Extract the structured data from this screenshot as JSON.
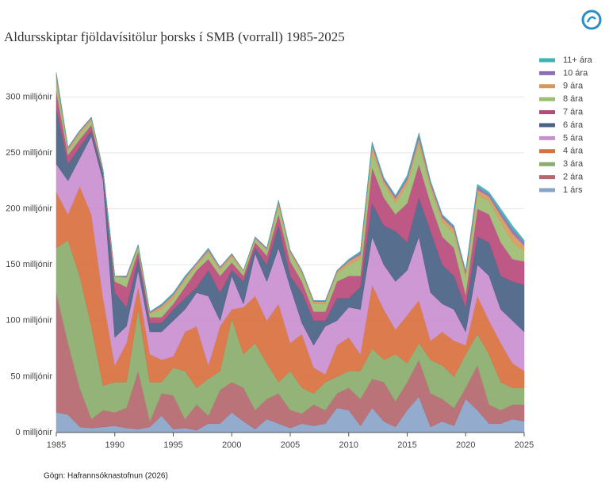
{
  "chart_data": {
    "type": "stacked-area",
    "title": "Aldursskiptar fjöldavísitölur þorsks í SMB (vorrall) 1985-2025",
    "source": "Gögn: Hafrannsóknastofnun (2026)",
    "x": [
      1985,
      1986,
      1987,
      1988,
      1989,
      1990,
      1991,
      1992,
      1993,
      1994,
      1995,
      1996,
      1997,
      1998,
      1999,
      2000,
      2001,
      2002,
      2003,
      2004,
      2005,
      2006,
      2007,
      2008,
      2009,
      2010,
      2011,
      2012,
      2013,
      2014,
      2015,
      2016,
      2017,
      2018,
      2019,
      2020,
      2021,
      2022,
      2023,
      2024,
      2025
    ],
    "xlim": [
      1985,
      2025
    ],
    "xticks": [
      1985,
      1990,
      1995,
      2000,
      2005,
      2010,
      2015,
      2020,
      2025
    ],
    "ylim": [
      0,
      330
    ],
    "yticks": [
      {
        "value": 0,
        "label": "0 milljónir"
      },
      {
        "value": 50,
        "label": "50 milljónir"
      },
      {
        "value": 100,
        "label": "100 milljónir"
      },
      {
        "value": 150,
        "label": "150 milljónir"
      },
      {
        "value": 200,
        "label": "200 milljónir"
      },
      {
        "value": 250,
        "label": "250 milljónir"
      },
      {
        "value": 300,
        "label": "300 milljónir"
      }
    ],
    "grid": true,
    "legend": "right",
    "series": [
      {
        "name": "1 árs",
        "color": "#8aa4c8",
        "values": [
          18,
          16,
          5,
          4,
          5,
          6,
          4,
          3,
          5,
          15,
          3,
          4,
          2,
          8,
          8,
          18,
          10,
          3,
          12,
          8,
          4,
          8,
          6,
          8,
          22,
          20,
          6,
          22,
          10,
          5,
          20,
          32,
          5,
          10,
          6,
          30,
          20,
          8,
          8,
          12,
          10
        ]
      },
      {
        "name": "2 ára",
        "color": "#b5676f",
        "values": [
          107,
          64,
          35,
          8,
          15,
          12,
          18,
          52,
          5,
          20,
          30,
          8,
          23,
          7,
          30,
          27,
          30,
          17,
          18,
          27,
          16,
          9,
          19,
          12,
          13,
          20,
          24,
          26,
          35,
          23,
          25,
          33,
          30,
          20,
          16,
          10,
          40,
          17,
          12,
          13,
          15
        ]
      },
      {
        "name": "3 ára",
        "color": "#8aad6e",
        "values": [
          40,
          92,
          100,
          83,
          22,
          27,
          23,
          55,
          35,
          10,
          25,
          43,
          15,
          33,
          17,
          57,
          30,
          60,
          32,
          10,
          35,
          23,
          10,
          25,
          15,
          15,
          25,
          27,
          20,
          42,
          17,
          15,
          30,
          30,
          28,
          30,
          28,
          45,
          25,
          15,
          15
        ]
      },
      {
        "name": "4 ára",
        "color": "#d9703f",
        "values": [
          50,
          23,
          80,
          100,
          78,
          15,
          35,
          20,
          25,
          20,
          10,
          35,
          55,
          12,
          40,
          8,
          42,
          42,
          38,
          70,
          25,
          48,
          23,
          7,
          28,
          30,
          15,
          57,
          45,
          22,
          43,
          38,
          17,
          30,
          32,
          8,
          34,
          30,
          35,
          22,
          15
        ]
      },
      {
        "name": "5 ára",
        "color": "#c98fd0",
        "values": [
          25,
          30,
          25,
          70,
          105,
          25,
          15,
          15,
          20,
          25,
          32,
          20,
          30,
          62,
          5,
          30,
          3,
          38,
          35,
          50,
          50,
          10,
          20,
          43,
          22,
          27,
          40,
          43,
          40,
          43,
          40,
          57,
          43,
          25,
          28,
          12,
          28,
          40,
          30,
          38,
          35
        ]
      },
      {
        "name": "6 ára",
        "color": "#4a6285",
        "values": [
          50,
          15,
          10,
          5,
          7,
          40,
          17,
          10,
          8,
          8,
          10,
          10,
          5,
          23,
          25,
          5,
          20,
          5,
          15,
          20,
          10,
          27,
          22,
          5,
          20,
          8,
          20,
          30,
          35,
          45,
          25,
          35,
          55,
          35,
          30,
          22,
          25,
          30,
          30,
          35,
          42
        ]
      },
      {
        "name": "7 ára",
        "color": "#b84a7a",
        "values": [
          15,
          8,
          7,
          5,
          1,
          10,
          18,
          7,
          5,
          5,
          5,
          10,
          15,
          10,
          15,
          7,
          5,
          5,
          8,
          10,
          13,
          10,
          8,
          8,
          15,
          20,
          10,
          32,
          25,
          15,
          35,
          30,
          25,
          25,
          25,
          11,
          25,
          25,
          30,
          20,
          21
        ]
      },
      {
        "name": "8 ára",
        "color": "#9cbd72",
        "values": [
          10,
          4,
          5,
          4,
          1,
          4,
          8,
          4,
          3,
          7,
          5,
          6,
          4,
          6,
          5,
          5,
          4,
          3,
          5,
          8,
          7,
          7,
          7,
          7,
          7,
          10,
          15,
          15,
          12,
          10,
          17,
          18,
          13,
          13,
          13,
          15,
          12,
          12,
          18,
          15,
          9
        ]
      },
      {
        "name": "9 ára",
        "color": "#d49a5c",
        "values": [
          4,
          2,
          2,
          2,
          1,
          1,
          1,
          1,
          1,
          3,
          3,
          2,
          2,
          2,
          2,
          2,
          1,
          1,
          1,
          3,
          2,
          2,
          2,
          2,
          2,
          3,
          4,
          5,
          3,
          4,
          4,
          5,
          4,
          4,
          4,
          4,
          5,
          4,
          6,
          8,
          5
        ]
      },
      {
        "name": "10 ára",
        "color": "#8e6fb5",
        "values": [
          2,
          1,
          1,
          1,
          0,
          0,
          1,
          1,
          1,
          1,
          1,
          1,
          1,
          1,
          1,
          1,
          0,
          1,
          1,
          1,
          1,
          1,
          1,
          1,
          1,
          1,
          2,
          2,
          2,
          2,
          2,
          3,
          2,
          2,
          2,
          2,
          3,
          2,
          3,
          4,
          3
        ]
      },
      {
        "name": "11+ ára",
        "color": "#3fb3b0",
        "values": [
          1,
          0,
          0,
          0,
          0,
          0,
          0,
          0,
          0,
          1,
          1,
          1,
          0,
          1,
          0,
          0,
          0,
          0,
          0,
          1,
          0,
          0,
          0,
          0,
          0,
          1,
          1,
          1,
          1,
          1,
          2,
          2,
          1,
          1,
          1,
          1,
          2,
          2,
          3,
          3,
          2
        ]
      }
    ]
  }
}
